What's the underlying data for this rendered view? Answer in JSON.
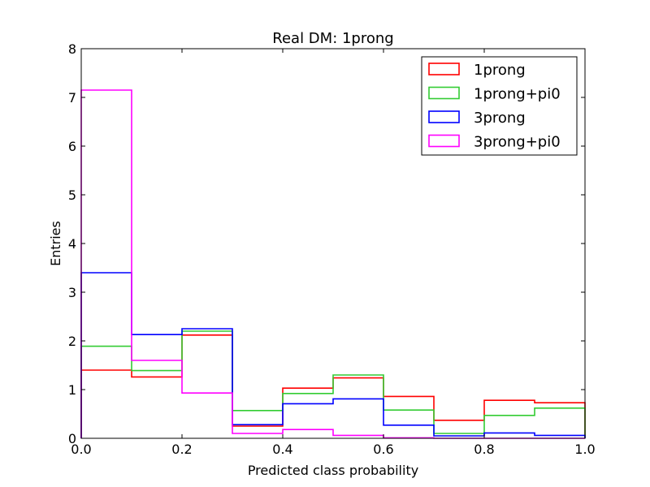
{
  "chart_data": {
    "type": "step-histogram",
    "title": "Real DM: 1prong",
    "xlabel": "Predicted class probability",
    "ylabel": "Entries",
    "xlim": [
      0.0,
      1.0
    ],
    "ylim": [
      0,
      8
    ],
    "grid": false,
    "legend_position": "top-right",
    "bin_edges": [
      0.0,
      0.1,
      0.2,
      0.3,
      0.4,
      0.5,
      0.6,
      0.7,
      0.8,
      0.9,
      1.0
    ],
    "x_ticks": [
      {
        "value": 0.0,
        "label": "0.0"
      },
      {
        "value": 0.2,
        "label": "0.2"
      },
      {
        "value": 0.4,
        "label": "0.4"
      },
      {
        "value": 0.6,
        "label": "0.6"
      },
      {
        "value": 0.8,
        "label": "0.8"
      },
      {
        "value": 1.0,
        "label": "1.0"
      }
    ],
    "y_ticks": [
      {
        "value": 0,
        "label": "0"
      },
      {
        "value": 1,
        "label": "1"
      },
      {
        "value": 2,
        "label": "2"
      },
      {
        "value": 3,
        "label": "3"
      },
      {
        "value": 4,
        "label": "4"
      },
      {
        "value": 5,
        "label": "5"
      },
      {
        "value": 6,
        "label": "6"
      },
      {
        "value": 7,
        "label": "7"
      },
      {
        "value": 8,
        "label": "8"
      }
    ],
    "series": [
      {
        "name": "1prong",
        "color": "#ff0000",
        "values": [
          1.4,
          1.26,
          2.12,
          0.25,
          1.03,
          1.24,
          0.86,
          0.37,
          0.78,
          0.73
        ]
      },
      {
        "name": "1prong+pi0",
        "color": "#33cc33",
        "values": [
          1.89,
          1.39,
          2.2,
          0.57,
          0.92,
          1.3,
          0.58,
          0.1,
          0.47,
          0.62
        ]
      },
      {
        "name": "3prong",
        "color": "#0000ff",
        "values": [
          3.4,
          2.13,
          2.25,
          0.28,
          0.71,
          0.81,
          0.27,
          0.05,
          0.11,
          0.06
        ]
      },
      {
        "name": "3prong+pi0",
        "color": "#ff00ff",
        "values": [
          7.15,
          1.6,
          0.93,
          0.1,
          0.18,
          0.06,
          0.01,
          0.0,
          0.0,
          0.0
        ]
      }
    ]
  }
}
